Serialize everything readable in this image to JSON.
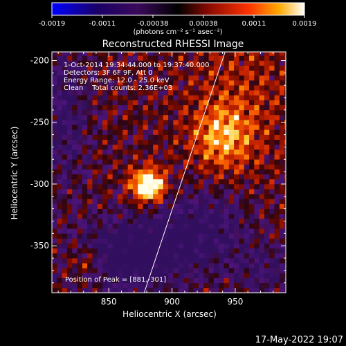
{
  "colorbar": {
    "ticks": [
      "-0.0019",
      "-0.0011",
      "-0.00038",
      "0.00038",
      "0.0011",
      "0.0019"
    ],
    "units_label": "(photons cm⁻² s⁻¹ asec⁻²)"
  },
  "chart_data": {
    "type": "heatmap",
    "title": "Reconstructed RHESSI Image",
    "xlabel": "Heliocentric X (arcsec)",
    "ylabel": "Heliocentric Y (arcsec)",
    "xlim": [
      805,
      990
    ],
    "ylim": [
      -388,
      -193
    ],
    "x_ticks": [
      "850",
      "900",
      "950"
    ],
    "y_ticks": [
      "-200",
      "-250",
      "-300",
      "-350"
    ],
    "x_tick_values": [
      850,
      900,
      950
    ],
    "y_tick_values": [
      -200,
      -250,
      -300,
      -350
    ],
    "colorbar_range": [
      -0.0019,
      0.0019
    ],
    "annotations": [
      "1-Oct-2014 19:34:44.000 to 19:37:40.000",
      "Detectors: 3F 6F 9F, Att 0",
      "Energy Range: 12.0 - 25.0 keV",
      "Clean    Total counts: 2.36E+03"
    ],
    "peak_label": "Position of Peak = [881,-301]",
    "peak": [
      881,
      -301
    ],
    "secondary_sources": [
      [
        940,
        -262
      ],
      [
        832,
        -362
      ]
    ],
    "limb_line": [
      [
        878,
        -388
      ],
      [
        942,
        -193
      ]
    ],
    "grid": false
  },
  "timestamp": "17-May-2022 19:07"
}
